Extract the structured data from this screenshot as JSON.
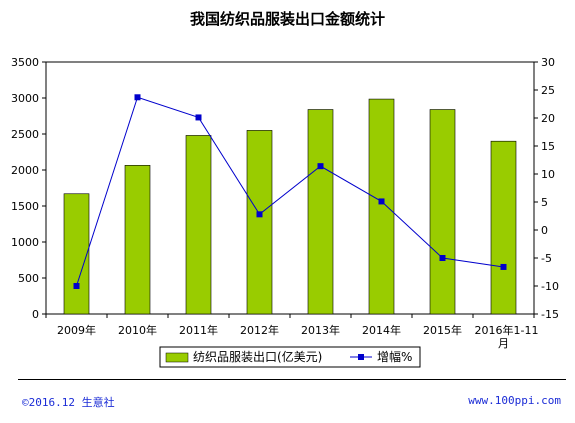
{
  "chart_data": {
    "type": "bar",
    "title": "我国纺织品服装出口金额统计",
    "categories": [
      "2009年",
      "2010年",
      "2011年",
      "2012年",
      "2013年",
      "2014年",
      "2015年",
      "2016年1-11月"
    ],
    "series": [
      {
        "name": "纺织品服装出口(亿美元)",
        "type": "bar",
        "axis": "left",
        "color": "#99cc00",
        "values": [
          1670,
          2065,
          2480,
          2550,
          2840,
          2985,
          2840,
          2400
        ]
      },
      {
        "name": "增幅%",
        "type": "line",
        "axis": "right",
        "color": "#0000cc",
        "values": [
          -10.0,
          23.7,
          20.1,
          2.8,
          11.4,
          5.1,
          -5.0,
          -6.6
        ]
      }
    ],
    "y_left": {
      "min": 0,
      "max": 3500,
      "step": 500
    },
    "y_right": {
      "min": -15,
      "max": 30,
      "step": 5
    },
    "grid": false,
    "legend_position": "bottom"
  },
  "footer": {
    "copyright": "©2016.12 生意社",
    "url": "www.100ppi.com"
  }
}
